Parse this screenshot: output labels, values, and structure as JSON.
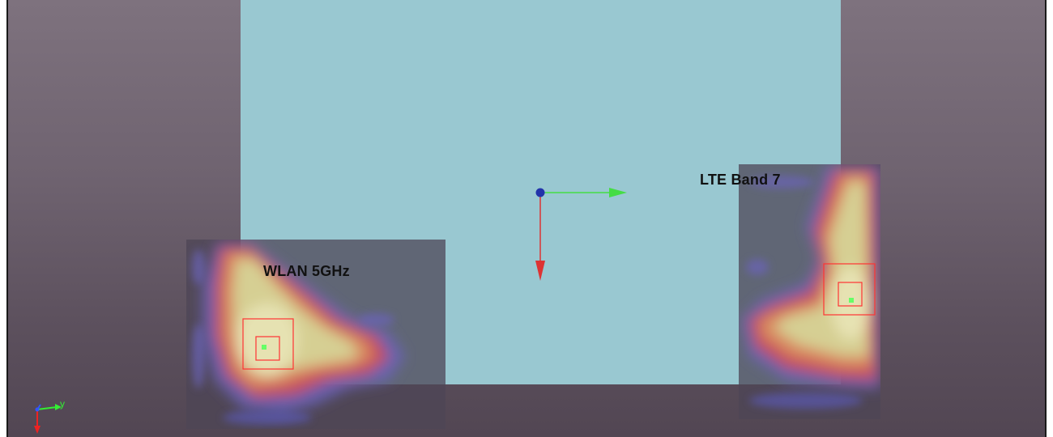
{
  "viewport": {
    "background_top": "#7e727e",
    "background_bottom": "#524653"
  },
  "pcb": {
    "color": "#99c8d1"
  },
  "regions": [
    {
      "id": "wlan",
      "label": "WLAN 5GHz"
    },
    {
      "id": "lte",
      "label": "LTE Band 7"
    }
  ],
  "hotspot_markers": {
    "outer_color": "#ff3333",
    "center_color": "#66ff66"
  },
  "origin_axes": {
    "x_color": "#dd3333",
    "y_color": "#44dd44",
    "origin_color": "#2233aa"
  },
  "triad": {
    "y_label": "y",
    "z_color": "#3355ff",
    "y_color": "#33ee33",
    "x_color": "#ee2222"
  }
}
